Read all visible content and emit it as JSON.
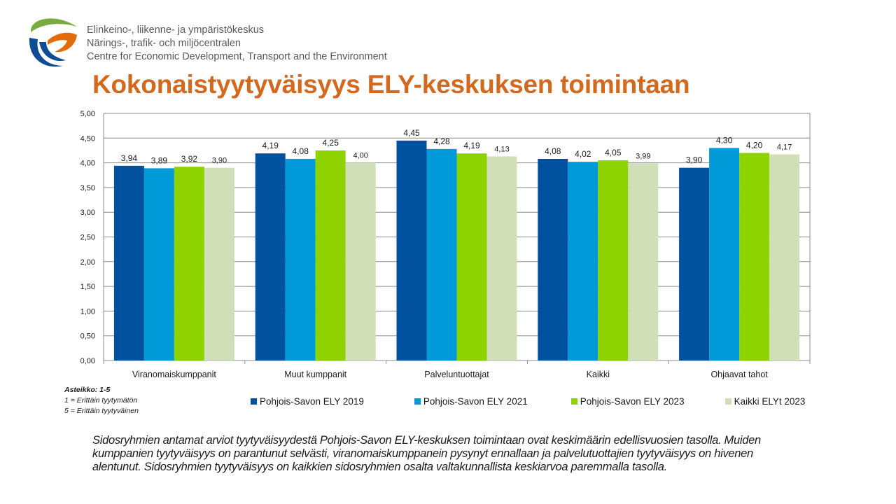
{
  "header": {
    "org_lines": [
      "Elinkeino-, liikenne- ja ympäristökeskus",
      "Närings-, trafik- och miljöcentralen",
      "Centre for Economic Development, Transport and the Environment"
    ],
    "title": "Kokonaistyytyväisyys ELY-keskuksen toimintaan"
  },
  "chart_data": {
    "type": "bar",
    "categories": [
      "Viranomaiskumppanit",
      "Muut kumppanit",
      "Palveluntuottajat",
      "Kaikki",
      "Ohjaavat tahot"
    ],
    "series": [
      {
        "name": "Pohjois-Savon ELY 2019",
        "color": "#00519e",
        "values": [
          3.94,
          4.19,
          4.45,
          4.08,
          3.9
        ],
        "labels": [
          "3,94",
          "4,19",
          "4,45",
          "4,08",
          "3,90"
        ]
      },
      {
        "name": "Pohjois-Savon ELY 2021",
        "color": "#009ad8",
        "values": [
          3.89,
          4.08,
          4.28,
          4.02,
          4.3
        ],
        "labels": [
          "3,89",
          "4,08",
          "4,28",
          "4,02",
          "4,30"
        ]
      },
      {
        "name": "Pohjois-Savon ELY 2023",
        "color": "#8ed200",
        "values": [
          3.92,
          4.25,
          4.19,
          4.05,
          4.2
        ],
        "labels": [
          "3,92",
          "4,25",
          "4,19",
          "4,05",
          "4,20"
        ]
      },
      {
        "name": "Kaikki ELYt 2023",
        "color": "#d0dfb8",
        "values": [
          3.9,
          4.0,
          4.13,
          3.99,
          4.17
        ],
        "labels": [
          "3,90",
          "4,00",
          "4,13",
          "3,99",
          "4,17"
        ]
      }
    ],
    "ylim": [
      0,
      5
    ],
    "yticks": [
      "0,00",
      "0,50",
      "1,00",
      "1,50",
      "2,00",
      "2,50",
      "3,00",
      "3,50",
      "4,00",
      "4,50",
      "5,00"
    ],
    "grid": true,
    "legend": "bottom"
  },
  "scale_note": {
    "title": "Asteikko: 1-5",
    "lines": [
      "1 = Erittäin  tyytymätön",
      "5 = Erittäin  tyytyväinen"
    ]
  },
  "caption": "Sidosryhmien antamat arviot tyytyväisyydestä Pohjois-Savon ELY-keskuksen toimintaan ovat keskimäärin edellisvuosien tasolla. Muiden kumppanien tyytyväisyys on parantunut selvästi, viranomaiskumppanein pysynyt ennallaan ja palvelutuottajien tyytyväisyys on hivenen alentunut. Sidosryhmien tyytyväisyys on kaikkien sidosryhmien osalta valtakunnallista keskiarvoa paremmalla tasolla."
}
